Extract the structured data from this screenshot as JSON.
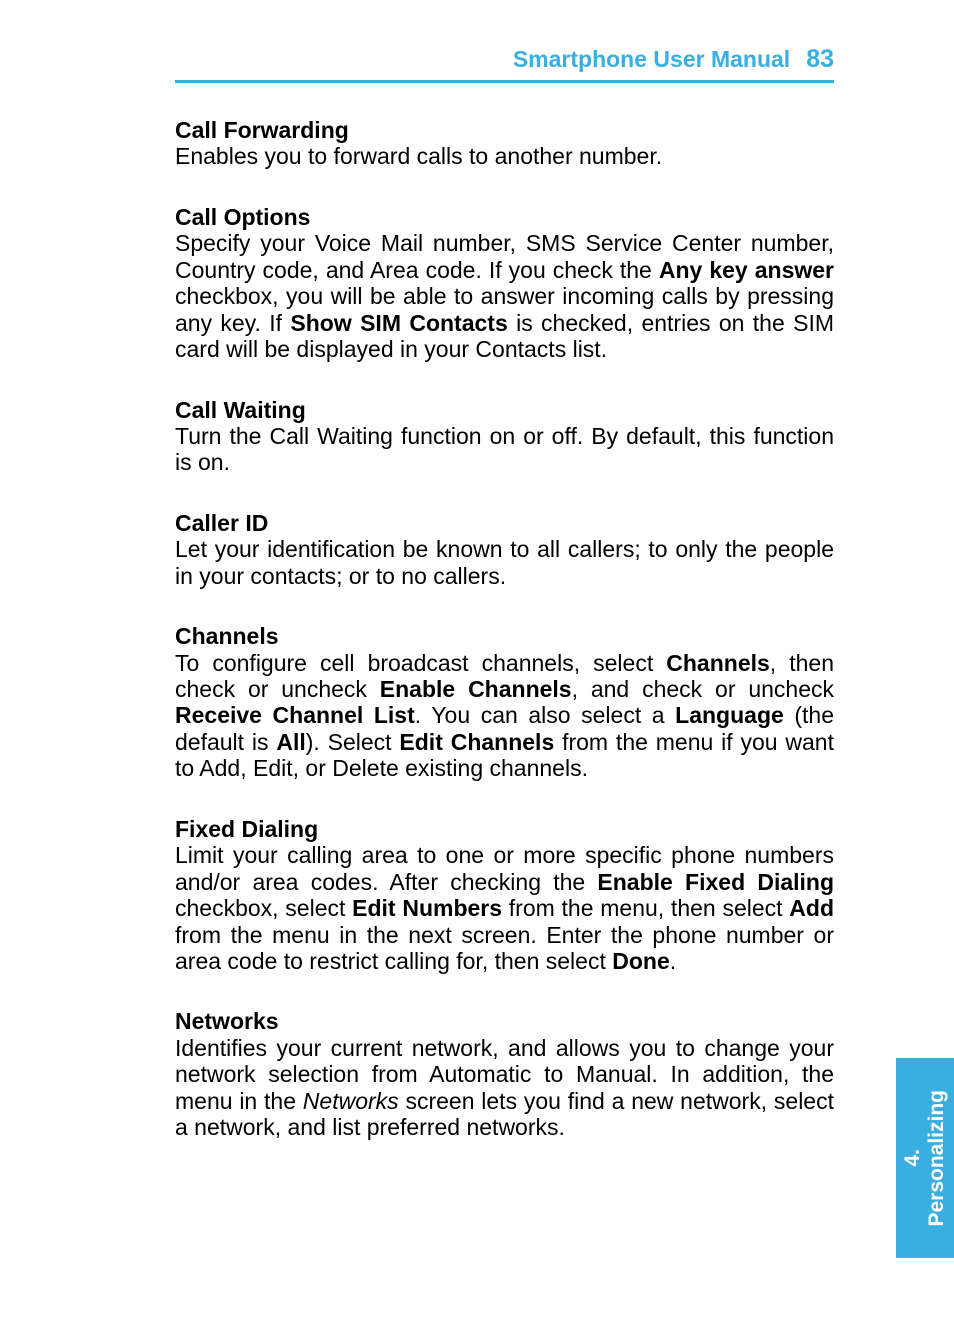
{
  "header": {
    "title": "Smartphone User Manual",
    "page_number": "83",
    "accent_color": "#39aee0"
  },
  "side_tab": {
    "chapter_number": "4.",
    "chapter_title": "Personalizing",
    "background_color": "#39aee0",
    "text_color": "#ffffff"
  },
  "sections": [
    {
      "heading": "Call Forwarding",
      "body_runs": [
        {
          "t": "Enables you to forward calls to another number."
        }
      ]
    },
    {
      "heading": "Call Options",
      "body_runs": [
        {
          "t": "Specify your Voice Mail number, SMS Service Center number, Country code, and Area code.  If you check the "
        },
        {
          "t": "Any key answer",
          "b": true
        },
        {
          "t": " checkbox, you will be able to answer incoming calls by pressing any key.  If "
        },
        {
          "t": "Show SIM Contacts",
          "b": true
        },
        {
          "t": " is checked, entries on the SIM card will be displayed in your Contacts list."
        }
      ]
    },
    {
      "heading": "Call Waiting",
      "body_runs": [
        {
          "t": "Turn the Call Waiting function on or off.  By default, this function is on."
        }
      ]
    },
    {
      "heading": "Caller ID",
      "body_runs": [
        {
          "t": "Let your identification be known to all callers; to only the people in your contacts; or to no callers."
        }
      ]
    },
    {
      "heading": "Channels",
      "body_runs": [
        {
          "t": "To configure cell broadcast channels, select "
        },
        {
          "t": "Channels",
          "b": true
        },
        {
          "t": ", then check or uncheck "
        },
        {
          "t": "Enable Channels",
          "b": true
        },
        {
          "t": ", and check or uncheck "
        },
        {
          "t": "Receive Channel List",
          "b": true
        },
        {
          "t": ".  You can also select a "
        },
        {
          "t": "Language",
          "b": true
        },
        {
          "t": " (the default is "
        },
        {
          "t": "All",
          "b": true
        },
        {
          "t": ").  Select "
        },
        {
          "t": "Edit Channels",
          "b": true
        },
        {
          "t": " from the menu if you want to Add, Edit, or Delete existing channels."
        }
      ]
    },
    {
      "heading": "Fixed Dialing",
      "body_runs": [
        {
          "t": "Limit your calling area to one or more specific phone numbers and/or area codes.  After checking the "
        },
        {
          "t": "Enable Fixed Dialing",
          "b": true
        },
        {
          "t": " checkbox, select "
        },
        {
          "t": "Edit Numbers",
          "b": true
        },
        {
          "t": " from the menu, then select "
        },
        {
          "t": "Add",
          "b": true
        },
        {
          "t": " from the menu in the next screen.  Enter the phone number or area code to restrict calling for, then select "
        },
        {
          "t": "Done",
          "b": true
        },
        {
          "t": "."
        }
      ]
    },
    {
      "heading": "Networks",
      "body_runs": [
        {
          "t": "Identifies your current network, and allows you to change your network selection from Automatic to Manual.  In addition, the menu in the "
        },
        {
          "t": "Networks",
          "i": true
        },
        {
          "t": " screen lets you find a new network, select a network, and list preferred networks."
        }
      ]
    }
  ],
  "typography": {
    "body_font_size_pt": 17,
    "heading_font_weight": "bold",
    "text_color": "#000000",
    "background_color": "#ffffff"
  }
}
